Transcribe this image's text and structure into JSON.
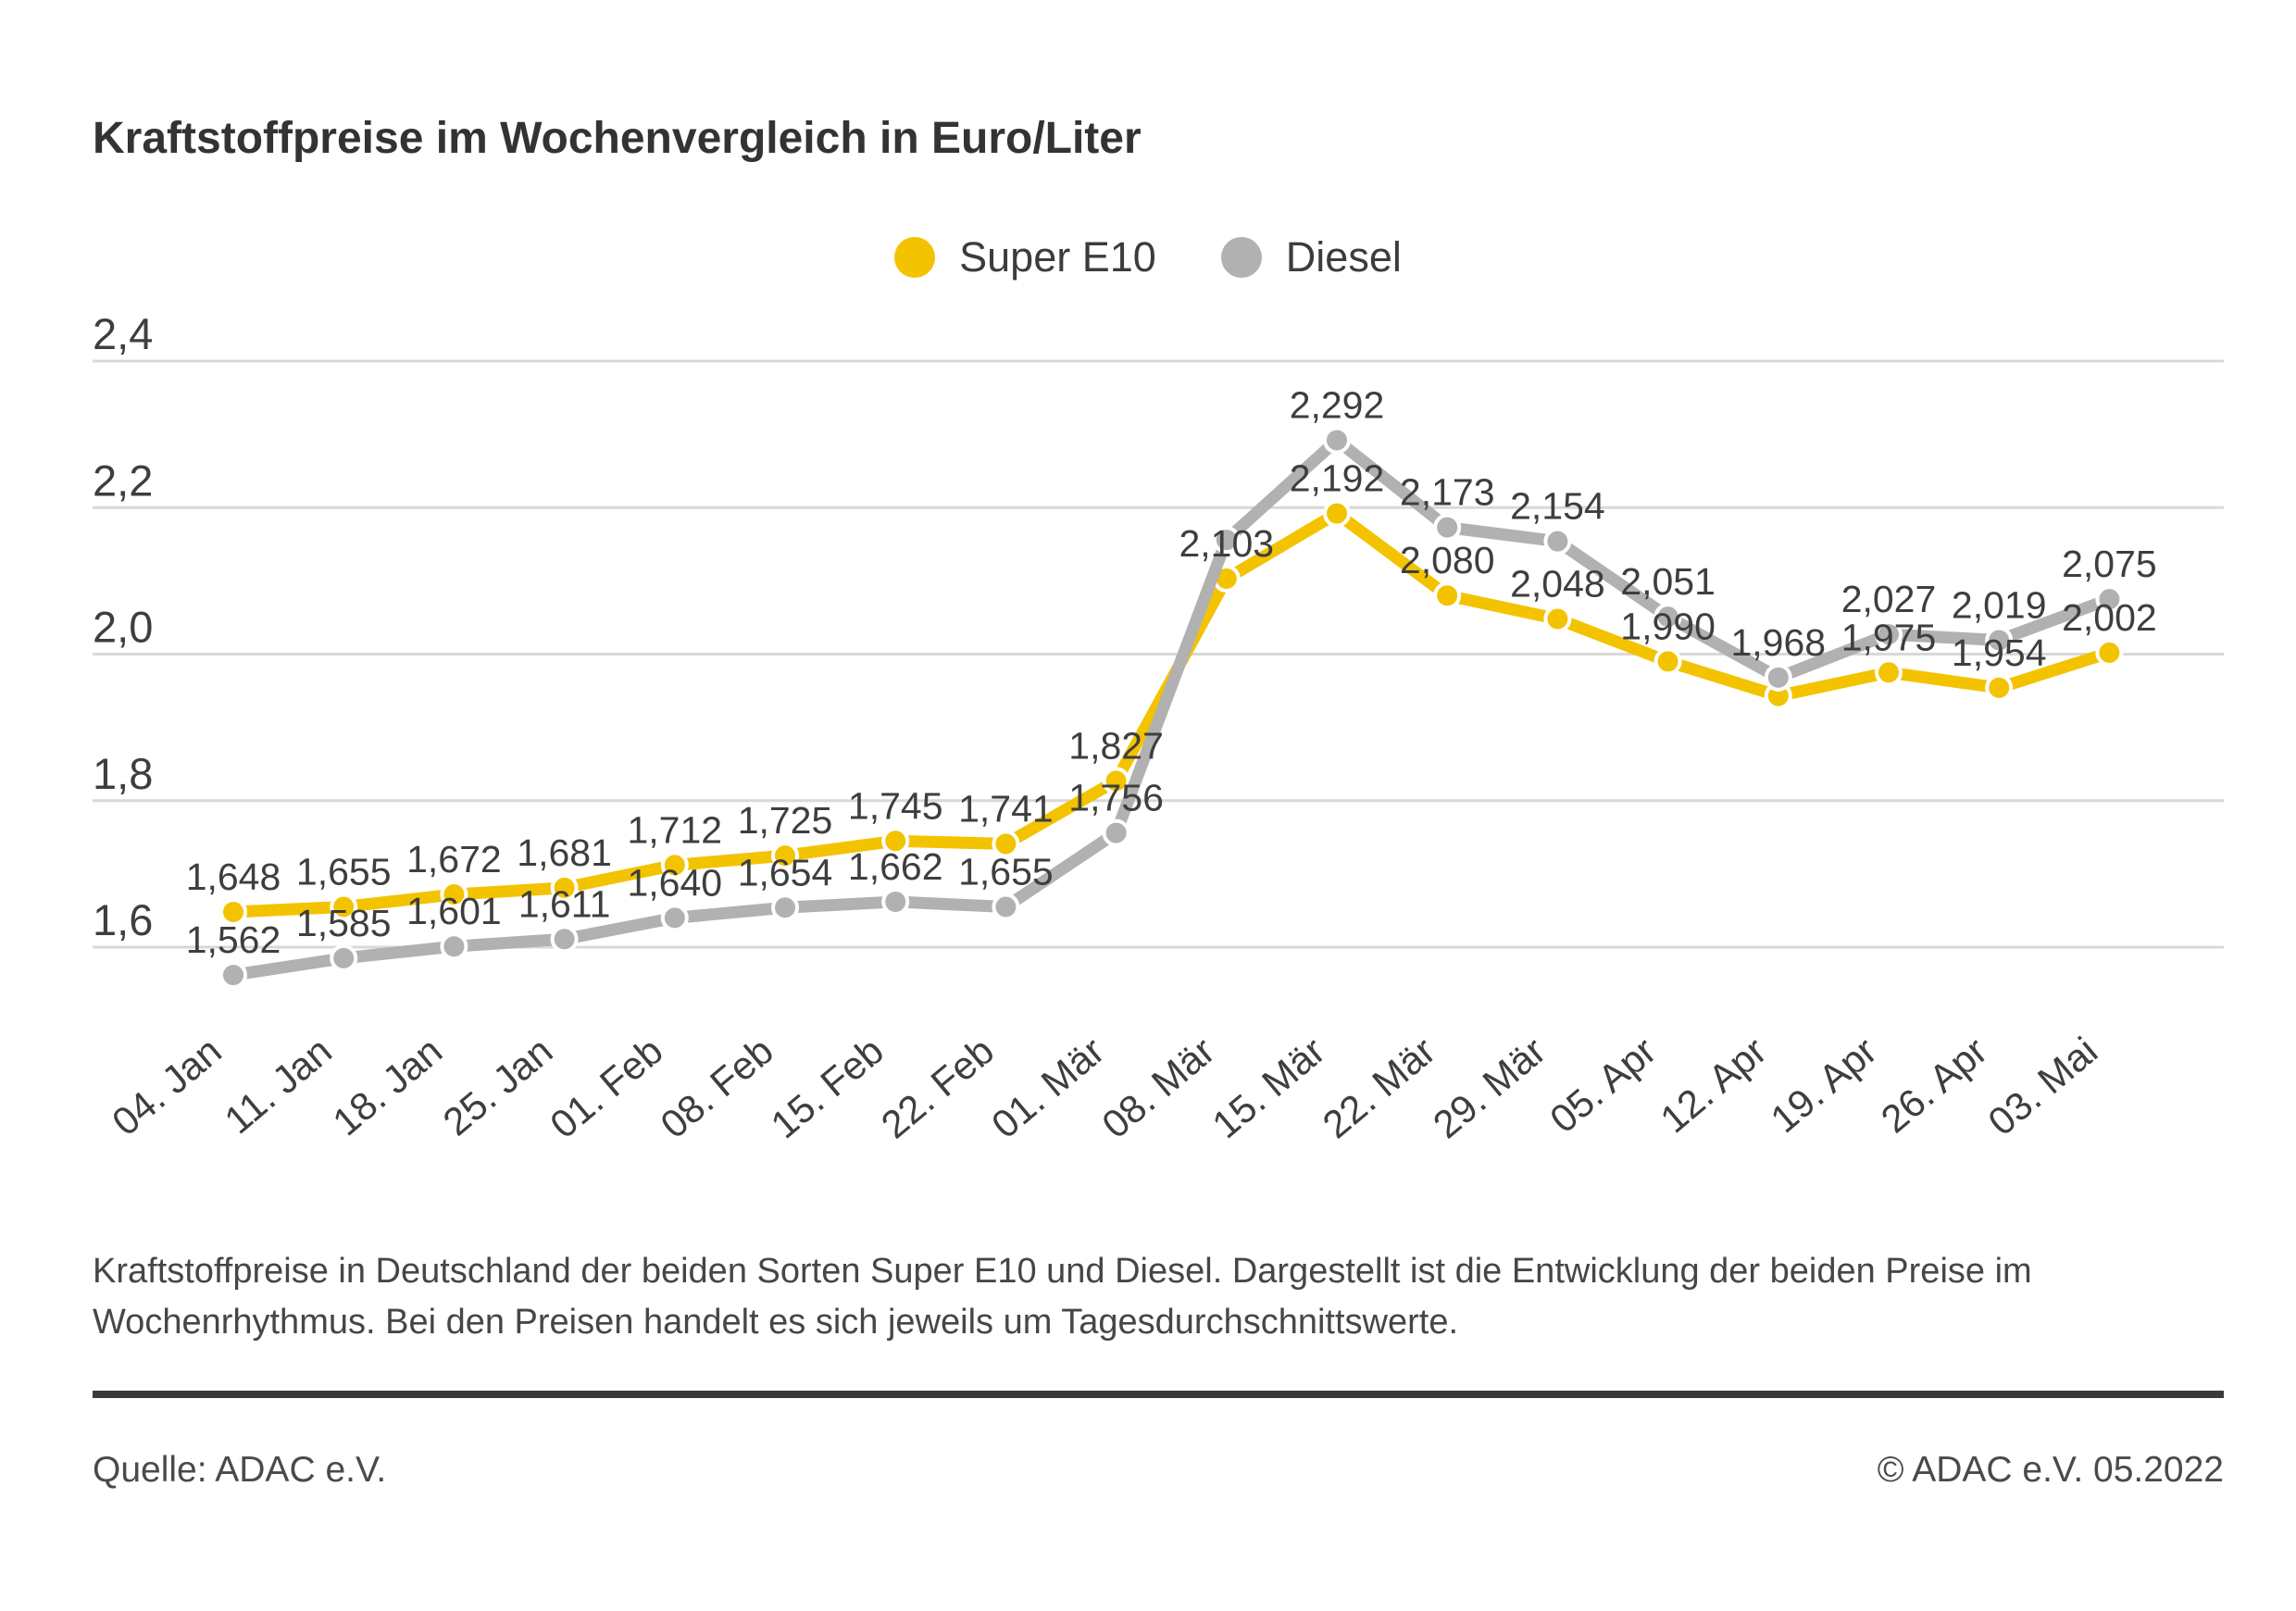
{
  "title": "Kraftstoffpreise im Wochenvergleich in Euro/Liter",
  "legend": {
    "items": [
      {
        "label": "Super E10",
        "color": "#F3C300"
      },
      {
        "label": "Diesel",
        "color": "#B1B1B1"
      }
    ]
  },
  "chart_data": {
    "type": "line",
    "title": "Kraftstoffpreise im Wochenvergleich in Euro/Liter",
    "xlabel": "",
    "ylabel": "Euro/Liter",
    "categories": [
      "04. Jan",
      "11. Jan",
      "18. Jan",
      "25. Jan",
      "01. Feb",
      "08. Feb",
      "15. Feb",
      "22. Feb",
      "01. Mär",
      "08. Mär",
      "15. Mär",
      "22. Mär",
      "29. Mär",
      "05. Apr",
      "12. Apr",
      "19. Apr",
      "26. Apr",
      "03. Mai"
    ],
    "series": [
      {
        "name": "Super E10",
        "color": "#F3C300",
        "values": [
          1.648,
          1.655,
          1.672,
          1.681,
          1.712,
          1.725,
          1.745,
          1.741,
          1.827,
          2.103,
          2.192,
          2.08,
          2.048,
          1.99,
          1.943,
          1.975,
          1.954,
          2.002
        ],
        "point_labels": [
          "1,648",
          "1,655",
          "1,672",
          "1,681",
          "1,712",
          "1,725",
          "1,745",
          "1,741",
          "1,827",
          "2,103",
          "2,192",
          "2,080",
          "2,048",
          "1,990",
          null,
          "1,975",
          "1,954",
          "2,002"
        ]
      },
      {
        "name": "Diesel",
        "color": "#B1B1B1",
        "values": [
          1.562,
          1.585,
          1.601,
          1.611,
          1.64,
          1.654,
          1.662,
          1.655,
          1.756,
          2.156,
          2.292,
          2.173,
          2.154,
          2.051,
          1.968,
          2.027,
          2.019,
          2.075
        ],
        "point_labels": [
          "1,562",
          "1,585",
          "1,601",
          "1,611",
          "1,640",
          "1,654",
          "1,662",
          "1,655",
          "1,756",
          null,
          "2,292",
          "2,173",
          "2,154",
          "2,051",
          "1,968",
          "2,027",
          "2,019",
          "2,075"
        ]
      }
    ],
    "ylim": [
      1.5,
      2.45
    ],
    "yticks": {
      "values": [
        2.4,
        2.2,
        2.0,
        1.8,
        1.6
      ],
      "labels": [
        "2,4",
        "2,2",
        "2,0",
        "1,8",
        "1,6"
      ]
    },
    "grid": true,
    "legend_position": "top-center",
    "gridline_color": "#D8D8D8",
    "axis_text_color": "#3E3E3E",
    "value_label_color": "#3E3E3E"
  },
  "description": {
    "lines": [
      "Kraftstoffpreise in Deutschland der beiden Sorten Super E10 und Diesel. Dargestellt ist die Entwicklung der beiden Preise im",
      "Wochenrhythmus. Bei den Preisen handelt es sich jeweils um Tagesdurchschnittswerte."
    ]
  },
  "footer": {
    "source": "Quelle: ADAC e.V.",
    "copyright": "© ADAC e.V. 05.2022"
  }
}
